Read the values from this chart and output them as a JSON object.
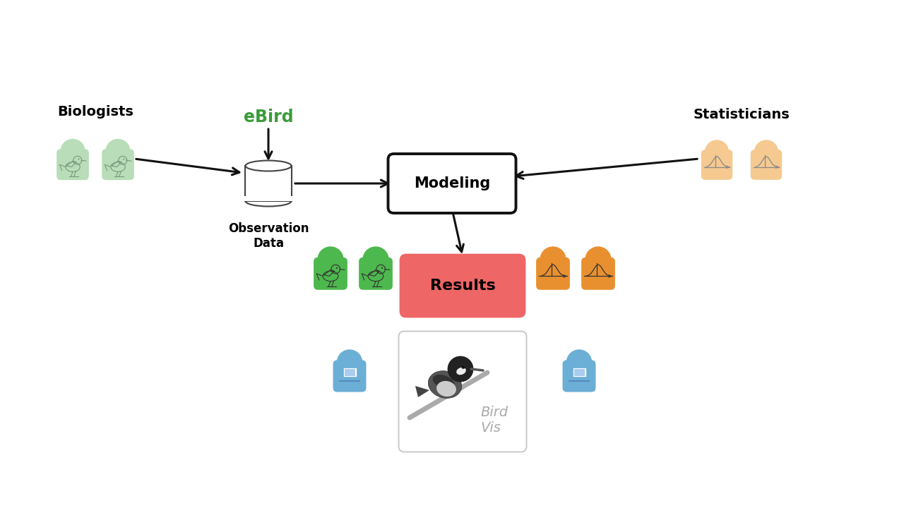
{
  "background_color": "#ffffff",
  "ebird_text": "eBird",
  "ebird_color": "#3a9c3a",
  "modeling_text": "Modeling",
  "results_text": "Results",
  "observation_text": "Observation\nData",
  "biologists_text": "Biologists",
  "statisticians_text": "Statisticians",
  "birdvis_text": "Bird\nVis",
  "results_bg": "#ee6666",
  "modeling_border": "#111111",
  "arrow_color": "#111111",
  "person_green_top": "#b8ddb8",
  "person_green_bot": "#4db84d",
  "person_orange_top": "#f5c990",
  "person_orange_bot": "#e89030",
  "person_blue": "#6baed6",
  "bird_outline": "#7a9a7a",
  "bell_outline": "#888888",
  "birdvis_border": "#cccccc",
  "birdvis_text_color": "#aaaaaa"
}
